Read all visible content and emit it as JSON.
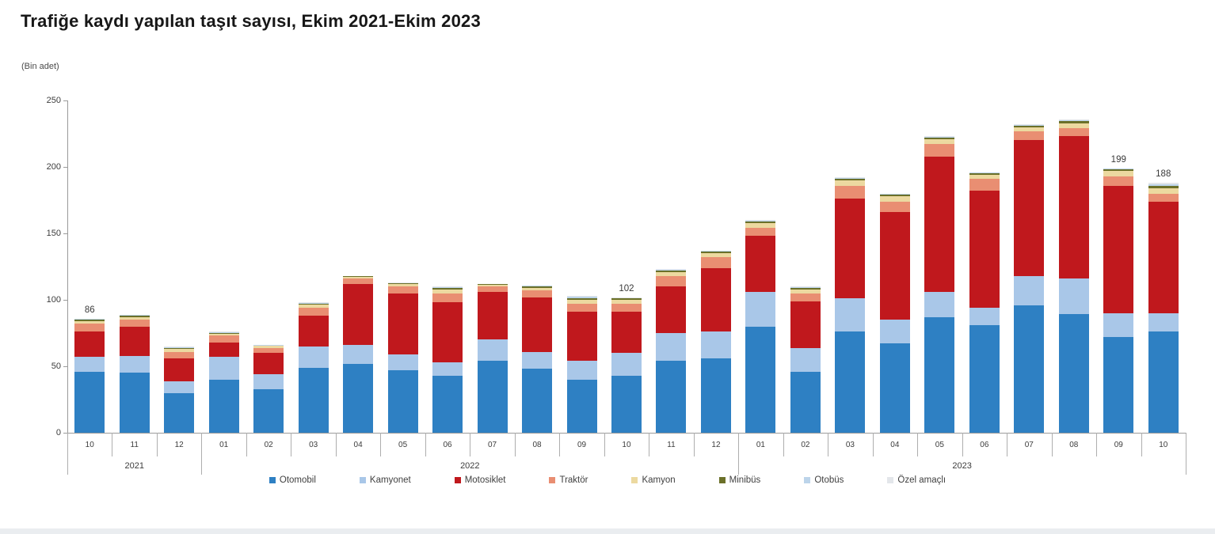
{
  "title": "Trafiğe kaydı yapılan taşıt sayısı, Ekim 2021-Ekim 2023",
  "subtitle": "(Bin adet)",
  "chart_data": {
    "type": "bar",
    "stacked": true,
    "title": "Trafiğe kaydı yapılan taşıt sayısı, Ekim 2021-Ekim 2023",
    "unit_note": "(Bin adet)",
    "ylim": [
      0,
      250
    ],
    "yticks": [
      0,
      50,
      100,
      150,
      200,
      250
    ],
    "grid": false,
    "legend_position": "bottom",
    "categories": [
      "10",
      "11",
      "12",
      "01",
      "02",
      "03",
      "04",
      "05",
      "06",
      "07",
      "08",
      "09",
      "10",
      "11",
      "12",
      "01",
      "02",
      "03",
      "04",
      "05",
      "06",
      "07",
      "08",
      "09",
      "10"
    ],
    "year_groups": [
      {
        "label": "2021",
        "span": 3
      },
      {
        "label": "2022",
        "span": 12
      },
      {
        "label": "2023",
        "span": 10
      }
    ],
    "series": [
      {
        "name": "Otomobil",
        "color": "#2e80c3",
        "values": [
          46,
          45,
          30,
          40,
          33,
          49,
          52,
          47,
          43,
          54,
          48,
          40,
          43,
          54,
          56,
          80,
          46,
          76,
          67,
          87,
          81,
          96,
          89,
          72,
          76
        ]
      },
      {
        "name": "Kamyonet",
        "color": "#a9c7e8",
        "values": [
          11,
          13,
          9,
          17,
          11,
          16,
          14,
          12,
          10,
          16,
          13,
          14,
          17,
          21,
          20,
          26,
          18,
          25,
          18,
          19,
          13,
          22,
          27,
          18,
          14
        ]
      },
      {
        "name": "Motosiklet",
        "color": "#c0181d",
        "values": [
          19,
          22,
          17,
          11,
          16,
          23,
          46,
          46,
          45,
          36,
          41,
          37,
          31,
          35,
          48,
          42,
          35,
          75,
          81,
          102,
          88,
          102,
          107,
          96,
          84
        ]
      },
      {
        "name": "Traktör",
        "color": "#e98e72",
        "values": [
          6,
          5,
          5,
          5,
          4,
          6,
          4,
          5,
          7,
          4,
          5,
          6,
          6,
          8,
          8,
          6,
          6,
          10,
          8,
          9,
          9,
          7,
          6,
          7,
          6
        ]
      },
      {
        "name": "Kamyon",
        "color": "#ecd9a0",
        "values": [
          2,
          2,
          2,
          1.5,
          1.2,
          2.5,
          1.2,
          2,
          3,
          1.2,
          2,
          3,
          3,
          3,
          3,
          4,
          3,
          4,
          4,
          4,
          3,
          3,
          4,
          4,
          4
        ]
      },
      {
        "name": "Minibüs",
        "color": "#6b7029",
        "values": [
          1,
          1,
          1,
          0.75,
          0.5,
          0.8,
          0.5,
          0.6,
          1,
          0.5,
          1,
          1.5,
          1,
          1.2,
          1.2,
          1.2,
          1.2,
          1.2,
          1.2,
          1.2,
          1.2,
          1.2,
          1.5,
          1.2,
          2
        ]
      },
      {
        "name": "Otobüs",
        "color": "#bcd4ea",
        "values": [
          0.5,
          0.5,
          0.5,
          0.4,
          0.2,
          0.4,
          0.2,
          0.2,
          0.5,
          0.2,
          0.5,
          0.8,
          0.5,
          0.5,
          0.5,
          0.5,
          0.5,
          0.5,
          0.5,
          0.5,
          0.5,
          0.5,
          0.8,
          0.5,
          1
        ]
      },
      {
        "name": "Özel amaçlı",
        "color": "#e3e6ea",
        "values": [
          0.5,
          0.5,
          0.5,
          0.35,
          0.1,
          0.3,
          0.1,
          0.2,
          0.5,
          0.1,
          0.5,
          0.7,
          0.5,
          0.3,
          0.3,
          0.3,
          0.3,
          0.3,
          0.3,
          0.3,
          0.3,
          0.3,
          0.7,
          0.3,
          1
        ]
      }
    ],
    "total_labels": [
      {
        "index": 0,
        "label": "86"
      },
      {
        "index": 12,
        "label": "102"
      },
      {
        "index": 23,
        "label": "199"
      },
      {
        "index": 24,
        "label": "188"
      }
    ]
  }
}
